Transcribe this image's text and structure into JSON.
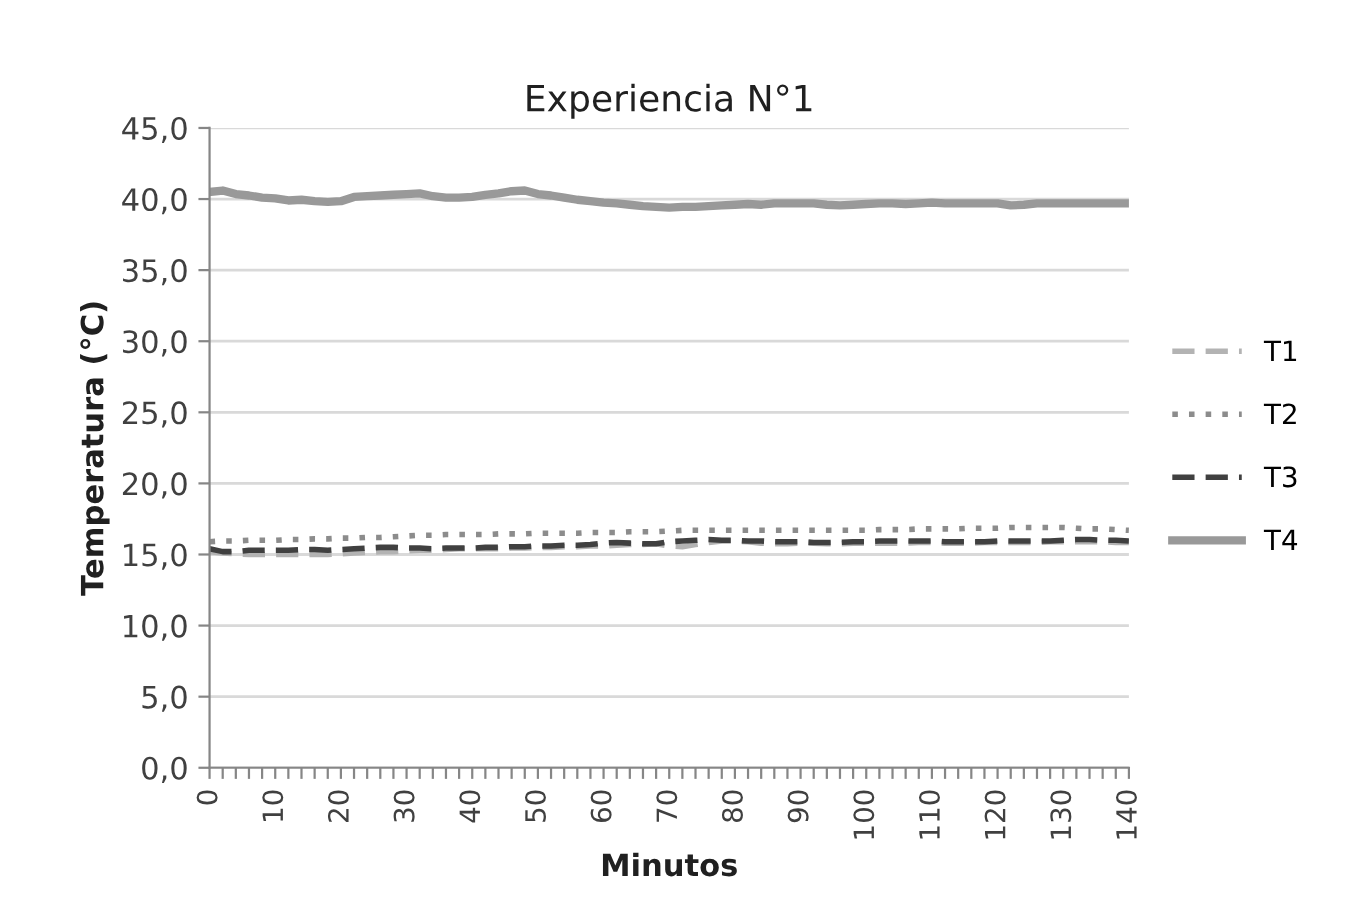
{
  "chart_data": {
    "type": "line",
    "title": "Experiencia N°1",
    "xlabel": "Minutos",
    "ylabel": "Temperatura (°C)",
    "categories": [
      "0",
      null,
      null,
      null,
      null,
      "10",
      null,
      null,
      null,
      null,
      "20",
      null,
      null,
      null,
      null,
      "30",
      null,
      null,
      null,
      null,
      "40",
      null,
      null,
      null,
      null,
      "50",
      null,
      null,
      null,
      null,
      "60",
      null,
      null,
      null,
      null,
      "70",
      null,
      null,
      null,
      null,
      "80",
      null,
      null,
      null,
      null,
      "90",
      null,
      null,
      null,
      null,
      "100",
      null,
      null,
      null,
      null,
      "110",
      null,
      null,
      null,
      null,
      "120",
      null,
      null,
      null,
      null,
      "130",
      null,
      null,
      null,
      null,
      "140"
    ],
    "ylim": [
      0,
      45
    ],
    "yticks": [
      {
        "value": 0,
        "label": "0,0"
      },
      {
        "value": 5,
        "label": "5,0"
      },
      {
        "value": 10,
        "label": "10,0"
      },
      {
        "value": 15,
        "label": "15,0"
      },
      {
        "value": 20,
        "label": "20,0"
      },
      {
        "value": 25,
        "label": "25,0"
      },
      {
        "value": 30,
        "label": "30,0"
      },
      {
        "value": 35,
        "label": "35,0"
      },
      {
        "value": 40,
        "label": "40,0"
      },
      {
        "value": 45,
        "label": "45,0"
      }
    ],
    "grid": "y",
    "legend": "right",
    "series": [
      {
        "name": "T1",
        "color": "#b3b3b3",
        "line_style": "dashed",
        "values": [
          15.2,
          15.1,
          15.05,
          15.0,
          15.0,
          15.0,
          15.0,
          15.0,
          15.0,
          15.0,
          15.05,
          15.1,
          15.15,
          15.2,
          15.2,
          15.25,
          15.3,
          15.3,
          15.35,
          15.4,
          15.4,
          15.4,
          15.4,
          15.45,
          15.45,
          15.5,
          15.5,
          15.55,
          15.55,
          15.6,
          15.6,
          15.65,
          15.7,
          15.7,
          15.75,
          15.6,
          15.55,
          15.7,
          15.85,
          15.95,
          15.95,
          15.9,
          15.8,
          15.75,
          15.75,
          15.8,
          15.8,
          15.75,
          15.75,
          15.8,
          15.8,
          15.8,
          15.8,
          15.8,
          15.85,
          15.85,
          15.8,
          15.8,
          15.8,
          15.85,
          15.85,
          15.85,
          15.85,
          15.85,
          15.9,
          15.9,
          15.9,
          15.9,
          15.9,
          15.85,
          15.85
        ]
      },
      {
        "name": "T2",
        "color": "#8c8c8c",
        "line_style": "dotted",
        "values": [
          15.9,
          15.95,
          15.95,
          16.0,
          16.0,
          16.0,
          16.05,
          16.05,
          16.1,
          16.1,
          16.15,
          16.15,
          16.2,
          16.2,
          16.25,
          16.3,
          16.35,
          16.35,
          16.4,
          16.4,
          16.4,
          16.4,
          16.45,
          16.45,
          16.45,
          16.5,
          16.5,
          16.5,
          16.5,
          16.55,
          16.55,
          16.55,
          16.6,
          16.6,
          16.6,
          16.65,
          16.7,
          16.7,
          16.7,
          16.7,
          16.7,
          16.7,
          16.7,
          16.7,
          16.7,
          16.7,
          16.7,
          16.7,
          16.7,
          16.7,
          16.7,
          16.75,
          16.75,
          16.75,
          16.8,
          16.8,
          16.8,
          16.8,
          16.85,
          16.85,
          16.85,
          16.9,
          16.9,
          16.9,
          16.9,
          16.9,
          16.85,
          16.8,
          16.8,
          16.75,
          16.7
        ]
      },
      {
        "name": "T3",
        "color": "#404040",
        "line_style": "dashed",
        "values": [
          15.4,
          15.2,
          15.2,
          15.3,
          15.3,
          15.3,
          15.3,
          15.35,
          15.35,
          15.3,
          15.35,
          15.4,
          15.45,
          15.5,
          15.5,
          15.45,
          15.45,
          15.4,
          15.45,
          15.45,
          15.45,
          15.5,
          15.5,
          15.55,
          15.55,
          15.6,
          15.6,
          15.65,
          15.65,
          15.7,
          15.8,
          15.85,
          15.8,
          15.75,
          15.75,
          15.9,
          15.95,
          16.0,
          16.05,
          16.0,
          16.0,
          15.95,
          15.95,
          15.9,
          15.9,
          15.9,
          15.85,
          15.85,
          15.85,
          15.9,
          15.9,
          15.95,
          15.95,
          15.95,
          15.95,
          15.95,
          15.9,
          15.9,
          15.9,
          15.9,
          15.95,
          15.95,
          15.95,
          15.95,
          15.95,
          16.0,
          16.05,
          16.05,
          16.0,
          16.0,
          15.95
        ]
      },
      {
        "name": "T4",
        "color": "#999999",
        "line_style": "solid",
        "values": [
          40.5,
          40.6,
          40.35,
          40.25,
          40.1,
          40.05,
          39.9,
          39.95,
          39.85,
          39.8,
          39.85,
          40.15,
          40.2,
          40.25,
          40.3,
          40.35,
          40.4,
          40.2,
          40.1,
          40.1,
          40.15,
          40.3,
          40.4,
          40.55,
          40.6,
          40.35,
          40.25,
          40.1,
          39.95,
          39.85,
          39.75,
          39.7,
          39.6,
          39.5,
          39.45,
          39.4,
          39.45,
          39.45,
          39.5,
          39.55,
          39.6,
          39.65,
          39.6,
          39.7,
          39.7,
          39.7,
          39.7,
          39.6,
          39.55,
          39.6,
          39.65,
          39.7,
          39.7,
          39.65,
          39.7,
          39.75,
          39.7,
          39.7,
          39.7,
          39.7,
          39.7,
          39.55,
          39.6,
          39.7,
          39.7,
          39.7,
          39.7,
          39.7,
          39.7,
          39.7,
          39.7
        ]
      }
    ]
  }
}
